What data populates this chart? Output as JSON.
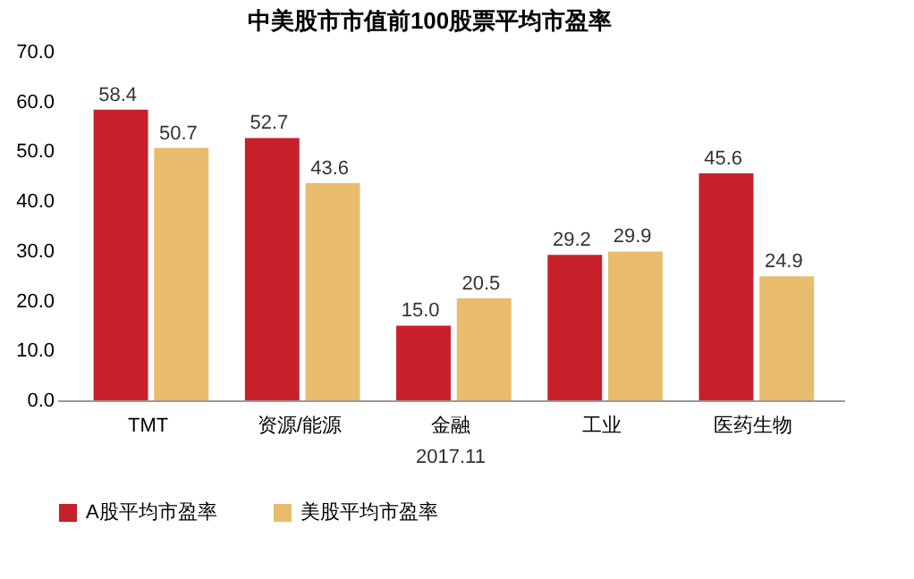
{
  "chart_data": {
    "type": "bar",
    "title": "中美股市市值前100股票平均市盈率",
    "categories": [
      "TMT",
      "资源/能源",
      "金融",
      "工业",
      "医药生物"
    ],
    "series": [
      {
        "name": "A股平均市盈率",
        "color": "#c8202b",
        "values": [
          58.4,
          52.7,
          15.0,
          29.2,
          45.6
        ],
        "value_labels": [
          "58.4",
          "52.7",
          "15.0",
          "29.2",
          "45.6"
        ]
      },
      {
        "name": "美股平均市盈率",
        "color": "#e9bb6c",
        "values": [
          50.7,
          43.6,
          20.5,
          29.9,
          24.9
        ],
        "value_labels": [
          "50.7",
          "43.6",
          "20.5",
          "29.9",
          "24.9"
        ]
      }
    ],
    "ylim": [
      0,
      70
    ],
    "yticks": [
      {
        "value": 0,
        "label": "0.0"
      },
      {
        "value": 10,
        "label": "10.0"
      },
      {
        "value": 20,
        "label": "20.0"
      },
      {
        "value": 30,
        "label": "30.0"
      },
      {
        "value": 40,
        "label": "40.0"
      },
      {
        "value": 50,
        "label": "50.0"
      },
      {
        "value": 60,
        "label": "60.0"
      },
      {
        "value": 70,
        "label": "70.0"
      }
    ],
    "grid": false,
    "legend": "bottom",
    "annotations": [
      "2017.11"
    ]
  }
}
